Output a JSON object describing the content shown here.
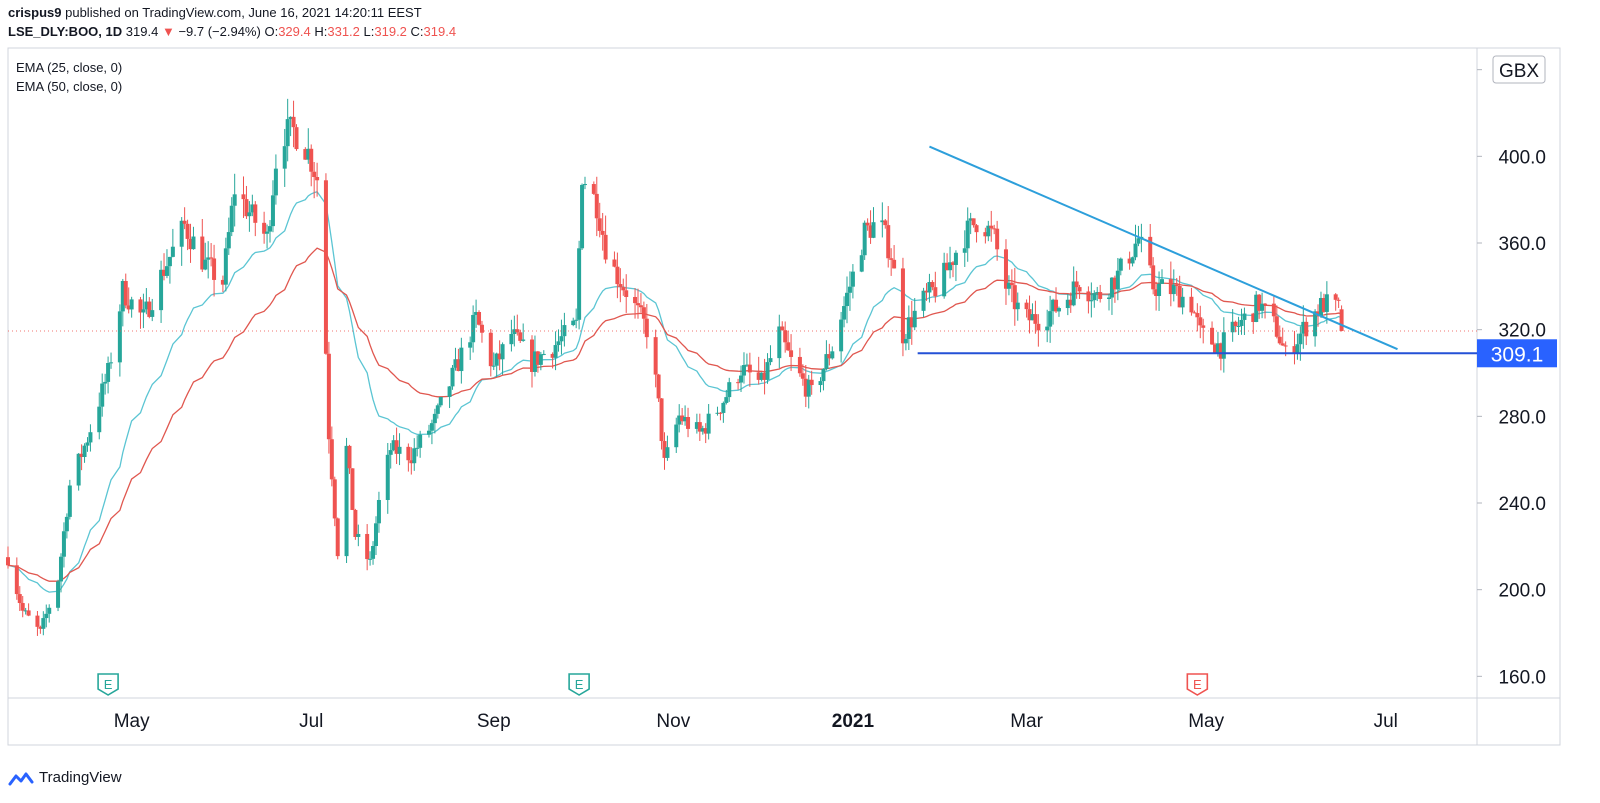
{
  "header": {
    "user": "crispus9",
    "published_text": "published on TradingView.com, June 16, 2021 14:20:11 EEST",
    "symbol": "LSE_DLY:BOO, 1D",
    "last": "319.4",
    "change_arrow": "▼",
    "change": "−9.7 (−2.94%)",
    "o_label": "O:",
    "o_value": "329.4",
    "h_label": "H:",
    "h_value": "331.2",
    "l_label": "L:",
    "l_value": "319.2",
    "c_label": "C:",
    "c_value": "319.4"
  },
  "indicators": [
    "EMA (25, close, 0)",
    "EMA (50, close, 0)"
  ],
  "footer": {
    "brand": "TradingView"
  },
  "colors": {
    "up": "#26a69a",
    "down": "#ef5350",
    "ema25": "#5bc5d3",
    "ema50": "#e0574f",
    "trendline": "#2d9fdb",
    "support": "#2451d6",
    "price_tag": "#2962ff",
    "axis_text": "#131722"
  },
  "chart_data": {
    "type": "candlestick",
    "currency": "GBX",
    "ylim": [
      150,
      450
    ],
    "y_ticks": [
      160,
      200,
      240,
      280,
      320,
      360,
      400,
      440
    ],
    "x_labels": [
      {
        "label": "May",
        "date": "2020-05-01",
        "bold": false
      },
      {
        "label": "Jul",
        "date": "2020-07-01",
        "bold": false
      },
      {
        "label": "Sep",
        "date": "2020-09-01",
        "bold": false
      },
      {
        "label": "Nov",
        "date": "2020-11-01",
        "bold": false
      },
      {
        "label": "2021",
        "date": "2021-01-01",
        "bold": true
      },
      {
        "label": "Mar",
        "date": "2021-03-01",
        "bold": false
      },
      {
        "label": "May",
        "date": "2021-05-01",
        "bold": false
      },
      {
        "label": "Jul",
        "date": "2021-07-01",
        "bold": false
      }
    ],
    "x_range": [
      "2020-03-20",
      "2021-08-01"
    ],
    "earnings_markers": [
      {
        "date": "2020-04-23",
        "label": "E",
        "color": "#26a69a"
      },
      {
        "date": "2020-09-30",
        "label": "E",
        "color": "#26a69a"
      },
      {
        "date": "2021-04-28",
        "label": "E",
        "color": "#ef5350"
      }
    ],
    "support_level": {
      "value": 309.1,
      "label": "309.1",
      "start_date": "2021-01-23"
    },
    "trendline": {
      "start_date": "2021-01-27",
      "start_value": 404.5,
      "end_date": "2021-07-05",
      "end_value": 311
    },
    "last_price": 319.4,
    "path": [
      [
        "2020-03-20",
        215
      ],
      [
        "2020-03-25",
        190
      ],
      [
        "2020-03-31",
        180
      ],
      [
        "2020-04-06",
        205
      ],
      [
        "2020-04-10",
        248
      ],
      [
        "2020-04-16",
        270
      ],
      [
        "2020-04-23",
        300
      ],
      [
        "2020-04-28",
        338
      ],
      [
        "2020-05-05",
        325
      ],
      [
        "2020-05-12",
        348
      ],
      [
        "2020-05-19",
        368
      ],
      [
        "2020-05-26",
        350
      ],
      [
        "2020-06-01",
        342
      ],
      [
        "2020-06-05",
        385
      ],
      [
        "2020-06-11",
        372
      ],
      [
        "2020-06-16",
        362
      ],
      [
        "2020-06-20",
        410
      ],
      [
        "2020-06-25",
        412
      ],
      [
        "2020-06-30",
        402
      ],
      [
        "2020-07-04",
        386
      ],
      [
        "2020-07-07",
        272
      ],
      [
        "2020-07-10",
        218
      ],
      [
        "2020-07-13",
        265
      ],
      [
        "2020-07-16",
        225
      ],
      [
        "2020-07-21",
        212
      ],
      [
        "2020-07-24",
        240
      ],
      [
        "2020-07-28",
        265
      ],
      [
        "2020-08-04",
        262
      ],
      [
        "2020-08-12",
        278
      ],
      [
        "2020-08-20",
        305
      ],
      [
        "2020-08-26",
        325
      ],
      [
        "2020-09-01",
        302
      ],
      [
        "2020-09-07",
        318
      ],
      [
        "2020-09-14",
        305
      ],
      [
        "2020-09-21",
        312
      ],
      [
        "2020-09-29",
        322
      ],
      [
        "2020-10-01",
        392
      ],
      [
        "2020-10-06",
        378
      ],
      [
        "2020-10-10",
        352
      ],
      [
        "2020-10-16",
        338
      ],
      [
        "2020-10-21",
        325
      ],
      [
        "2020-10-24",
        318
      ],
      [
        "2020-10-27",
        285
      ],
      [
        "2020-10-29",
        258
      ],
      [
        "2020-11-03",
        280
      ],
      [
        "2020-11-10",
        272
      ],
      [
        "2020-11-17",
        285
      ],
      [
        "2020-11-24",
        302
      ],
      [
        "2020-12-01",
        295
      ],
      [
        "2020-12-07",
        318
      ],
      [
        "2020-12-12",
        302
      ],
      [
        "2020-12-18",
        290
      ],
      [
        "2020-12-25",
        312
      ],
      [
        "2021-01-01",
        345
      ],
      [
        "2021-01-05",
        365
      ],
      [
        "2021-01-10",
        370
      ],
      [
        "2021-01-14",
        355
      ],
      [
        "2021-01-18",
        318
      ],
      [
        "2021-01-24",
        332
      ],
      [
        "2021-01-31",
        342
      ],
      [
        "2021-02-07",
        362
      ],
      [
        "2021-02-13",
        372
      ],
      [
        "2021-02-18",
        362
      ],
      [
        "2021-02-22",
        340
      ],
      [
        "2021-02-28",
        325
      ],
      [
        "2021-03-06",
        325
      ],
      [
        "2021-03-13",
        332
      ],
      [
        "2021-03-19",
        342
      ],
      [
        "2021-03-25",
        335
      ],
      [
        "2021-04-01",
        345
      ],
      [
        "2021-04-08",
        362
      ],
      [
        "2021-04-13",
        340
      ],
      [
        "2021-04-20",
        338
      ],
      [
        "2021-04-26",
        332
      ],
      [
        "2021-04-29",
        318
      ],
      [
        "2021-05-06",
        312
      ],
      [
        "2021-05-12",
        322
      ],
      [
        "2021-05-19",
        332
      ],
      [
        "2021-05-25",
        320
      ],
      [
        "2021-05-28",
        308
      ],
      [
        "2021-06-02",
        318
      ],
      [
        "2021-06-07",
        328
      ],
      [
        "2021-06-10",
        332
      ],
      [
        "2021-06-15",
        329.4
      ],
      [
        "2021-06-16",
        319.4
      ]
    ]
  }
}
